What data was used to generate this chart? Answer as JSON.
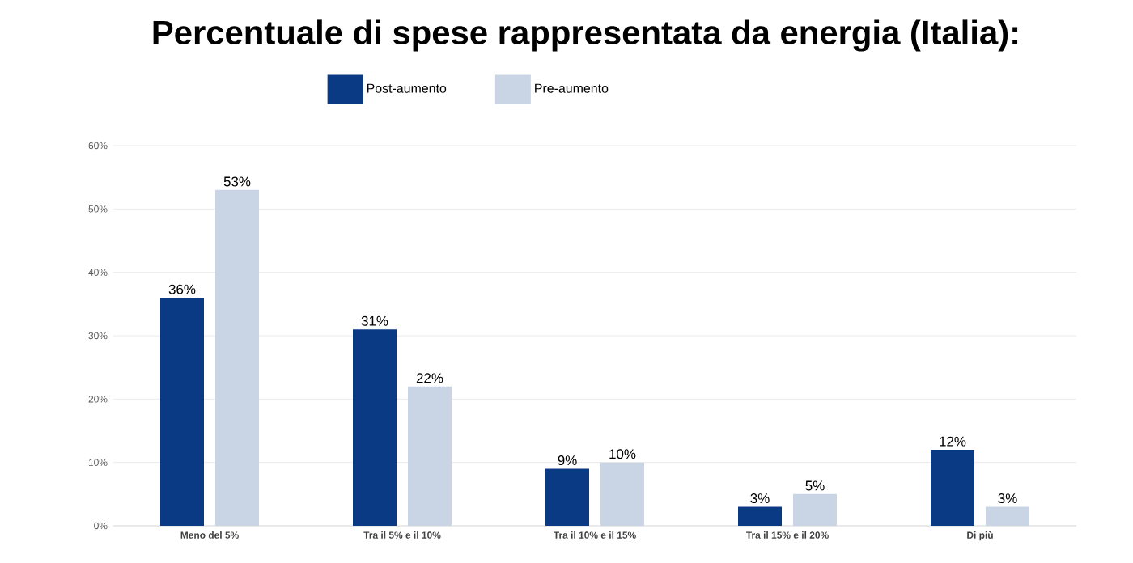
{
  "chart_data": {
    "type": "bar",
    "title": "Percentuale di spese rappresentata da energia (Italia):",
    "categories": [
      "Meno del 5%",
      "Tra il 5% e il 10%",
      "Tra il 10% e il 15%",
      "Tra il 15% e il 20%",
      "Di più"
    ],
    "series": [
      {
        "name": "Post-aumento",
        "color": "#0b3a84",
        "values": [
          36,
          31,
          9,
          3,
          12
        ],
        "value_labels": [
          "36%",
          "31%",
          "9%",
          "3%",
          "12%"
        ]
      },
      {
        "name": "Pre-aumento",
        "color": "#c9d5e4",
        "values": [
          53,
          22,
          10,
          5,
          3
        ],
        "value_labels": [
          "53%",
          "22%",
          "10%",
          "5%",
          "3%"
        ]
      }
    ],
    "ylim": [
      0,
      60
    ],
    "yticks": [
      {
        "value": 0,
        "label": "0%"
      },
      {
        "value": 10,
        "label": "10%"
      },
      {
        "value": 20,
        "label": "20%"
      },
      {
        "value": 30,
        "label": "30%"
      },
      {
        "value": 40,
        "label": "40%"
      },
      {
        "value": 50,
        "label": "50%"
      },
      {
        "value": 60,
        "label": "60%"
      }
    ],
    "grid": "y",
    "legend": "top"
  }
}
